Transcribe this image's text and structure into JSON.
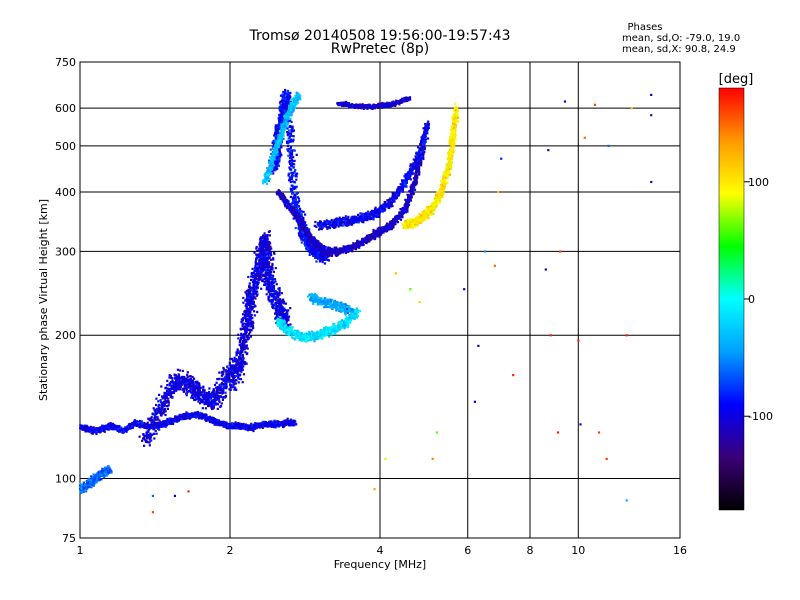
{
  "chart_data": {
    "type": "scatter",
    "title": "Tromsø 20140508 19:56:00-19:57:43",
    "subtitle": "RwPretec (8p)",
    "xlabel": "Frequency [MHz]",
    "ylabel": "Stationary phase Virtual Height [km]",
    "x_scale": "log",
    "y_scale": "log",
    "xlim": [
      1,
      16
    ],
    "ylim": [
      75,
      750
    ],
    "x_ticks": [
      1,
      2,
      4,
      6,
      8,
      10,
      16
    ],
    "x_tick_labels": [
      "1",
      "2",
      "4",
      "6",
      "8",
      "10",
      "16"
    ],
    "y_ticks": [
      75,
      100,
      200,
      300,
      400,
      500,
      600,
      750
    ],
    "y_tick_labels": [
      "75",
      "100",
      "200",
      "300",
      "400",
      "500",
      "600",
      "750"
    ],
    "grid": true,
    "colorbar": {
      "label": "[deg]",
      "range": [
        -180,
        180
      ],
      "ticks": [
        100,
        0,
        -100
      ],
      "tick_labels": [
        "100",
        "0",
        "-100"
      ],
      "colors": [
        "#000000",
        "#3a0078",
        "#0000ff",
        "#00a0ff",
        "#00ffff",
        "#00ff00",
        "#ffff00",
        "#ff9900",
        "#ff0000"
      ]
    },
    "stats": {
      "heading": "Phases",
      "o_mode": "mean, sd,O: -79.0, 19.0",
      "x_mode": "mean, sd,X:  90.8, 24.9"
    },
    "traces": [
      {
        "f": [
          1.0,
          1.08,
          1.15,
          1.22,
          1.3,
          1.4,
          1.5,
          1.6,
          1.7,
          1.8,
          1.9,
          2.0,
          2.1,
          2.2,
          2.35,
          2.5,
          2.6,
          2.7
        ],
        "h": [
          128,
          126,
          129,
          126,
          131,
          128,
          131,
          135,
          136,
          134,
          131,
          129,
          129,
          128,
          130,
          130,
          131,
          131
        ],
        "phase": -95,
        "spread": 0.02,
        "n": 4
      },
      {
        "f": [
          1.35,
          1.45,
          1.55,
          1.65,
          1.75,
          1.85,
          1.95,
          2.05
        ],
        "h": [
          120,
          140,
          160,
          158,
          150,
          145,
          160,
          175
        ],
        "phase": -100,
        "spread": 0.07,
        "n": 5
      },
      {
        "f": [
          2.05,
          2.15,
          2.2,
          2.3,
          2.35,
          2.4,
          2.5,
          2.6
        ],
        "h": [
          160,
          200,
          240,
          280,
          320,
          260,
          230,
          210
        ],
        "phase": -100,
        "spread": 0.07,
        "n": 7
      },
      {
        "f": [
          2.45,
          2.5,
          2.55,
          2.6,
          2.7,
          2.8,
          2.9,
          3.0,
          3.1
        ],
        "h": [
          450,
          520,
          580,
          640,
          380,
          330,
          310,
          300,
          295
        ],
        "phase": -90,
        "spread": 0.05,
        "n": 8
      },
      {
        "f": [
          2.5,
          2.7,
          2.9,
          3.1,
          3.3,
          3.6,
          3.9,
          4.2,
          4.5,
          4.7,
          4.9
        ],
        "h": [
          400,
          360,
          320,
          300,
          300,
          310,
          325,
          340,
          370,
          420,
          500
        ],
        "phase": -110,
        "spread": 0.025,
        "n": 6
      },
      {
        "f": [
          3.0,
          3.3,
          3.6,
          3.9,
          4.2,
          4.5,
          4.8,
          5.0
        ],
        "h": [
          340,
          345,
          350,
          360,
          380,
          420,
          480,
          560
        ],
        "phase": -95,
        "spread": 0.03,
        "n": 5
      },
      {
        "f": [
          3.3,
          3.6,
          3.9,
          4.2,
          4.6
        ],
        "h": [
          615,
          605,
          605,
          610,
          630
        ],
        "phase": -105,
        "spread": 0.015,
        "n": 4
      },
      {
        "f": [
          2.5,
          2.6,
          2.8,
          3.0,
          3.2,
          3.4,
          3.6
        ],
        "h": [
          215,
          205,
          198,
          200,
          205,
          212,
          225
        ],
        "phase": -15,
        "spread": 0.03,
        "n": 5
      },
      {
        "f": [
          2.9,
          3.1,
          3.3,
          3.5
        ],
        "h": [
          240,
          235,
          230,
          225
        ],
        "phase": -40,
        "spread": 0.03,
        "n": 4
      },
      {
        "f": [
          4.5,
          4.7,
          4.9,
          5.1,
          5.3,
          5.5,
          5.6,
          5.7
        ],
        "h": [
          340,
          345,
          355,
          370,
          400,
          450,
          520,
          600
        ],
        "phase": 100,
        "spread": 0.03,
        "n": 5
      },
      {
        "f": [
          2.35,
          2.45,
          2.55,
          2.65,
          2.75
        ],
        "h": [
          420,
          480,
          540,
          600,
          640
        ],
        "phase": -30,
        "spread": 0.03,
        "n": 4
      },
      {
        "f": [
          1.0,
          1.05,
          1.1,
          1.15
        ],
        "h": [
          95,
          98,
          102,
          105
        ],
        "phase": -60,
        "spread": 0.03,
        "n": 4
      }
    ],
    "scattered_points": [
      {
        "f": 1.4,
        "h": 85,
        "phase": 160
      },
      {
        "f": 1.4,
        "h": 92,
        "phase": -60
      },
      {
        "f": 1.55,
        "h": 92,
        "phase": -100
      },
      {
        "f": 1.65,
        "h": 94,
        "phase": 170
      },
      {
        "f": 3.9,
        "h": 95,
        "phase": 130
      },
      {
        "f": 4.1,
        "h": 110,
        "phase": 80
      },
      {
        "f": 5.2,
        "h": 125,
        "phase": 60
      },
      {
        "f": 6.3,
        "h": 190,
        "phase": -120
      },
      {
        "f": 7.4,
        "h": 165,
        "phase": 170
      },
      {
        "f": 8.8,
        "h": 200,
        "phase": 170
      },
      {
        "f": 9.2,
        "h": 300,
        "phase": 160
      },
      {
        "f": 10.0,
        "h": 195,
        "phase": 170
      },
      {
        "f": 9.1,
        "h": 125,
        "phase": 170
      },
      {
        "f": 10.1,
        "h": 130,
        "phase": -100
      },
      {
        "f": 11.0,
        "h": 125,
        "phase": 160
      },
      {
        "f": 11.4,
        "h": 110,
        "phase": 160
      },
      {
        "f": 12.5,
        "h": 90,
        "phase": -40
      },
      {
        "f": 14.0,
        "h": 420,
        "phase": -130
      },
      {
        "f": 14.0,
        "h": 580,
        "phase": -120
      },
      {
        "f": 14.0,
        "h": 640,
        "phase": -110
      },
      {
        "f": 11.5,
        "h": 500,
        "phase": -60
      },
      {
        "f": 10.8,
        "h": 610,
        "phase": 160
      },
      {
        "f": 9.4,
        "h": 620,
        "phase": -100
      },
      {
        "f": 8.7,
        "h": 490,
        "phase": -120
      },
      {
        "f": 10.3,
        "h": 520,
        "phase": 150
      },
      {
        "f": 12.8,
        "h": 600,
        "phase": 120
      },
      {
        "f": 6.8,
        "h": 280,
        "phase": 150
      },
      {
        "f": 8.6,
        "h": 275,
        "phase": -110
      },
      {
        "f": 6.5,
        "h": 300,
        "phase": -50
      },
      {
        "f": 6.9,
        "h": 400,
        "phase": 120
      },
      {
        "f": 7.0,
        "h": 470,
        "phase": -80
      },
      {
        "f": 5.9,
        "h": 250,
        "phase": -110
      },
      {
        "f": 4.6,
        "h": 250,
        "phase": 60
      },
      {
        "f": 4.8,
        "h": 235,
        "phase": 110
      },
      {
        "f": 4.3,
        "h": 270,
        "phase": 120
      },
      {
        "f": 6.2,
        "h": 145,
        "phase": -100
      },
      {
        "f": 5.1,
        "h": 110,
        "phase": 140
      },
      {
        "f": 12.5,
        "h": 200,
        "phase": 170
      }
    ]
  }
}
